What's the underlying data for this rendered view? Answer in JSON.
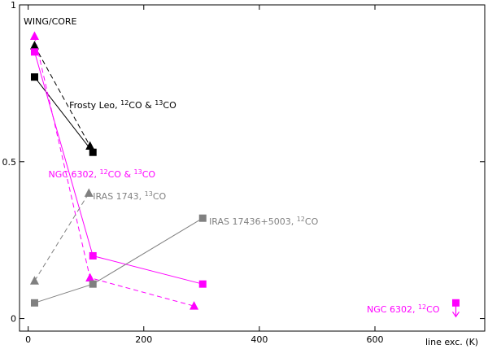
{
  "chart_data": {
    "type": "scatter",
    "title": "",
    "corner_label": "WING/CORE",
    "xlabel": "line exc. (K)",
    "ylabel": "",
    "xlim": [
      -15,
      790
    ],
    "ylim": [
      -0.04,
      1.0
    ],
    "x_ticks": [
      {
        "value": 0,
        "label": "0"
      },
      {
        "value": 200,
        "label": "200"
      },
      {
        "value": 400,
        "label": "400"
      },
      {
        "value": 600,
        "label": "600"
      }
    ],
    "y_ticks": [
      {
        "value": 0,
        "label": "0"
      },
      {
        "value": 0.5,
        "label": "0.5"
      },
      {
        "value": 1,
        "label": "1"
      }
    ],
    "grid": false,
    "series": [
      {
        "key": "frosty_12co",
        "color": "#000000",
        "marker": "square",
        "line": "solid",
        "x": [
          11,
          112
        ],
        "y": [
          0.77,
          0.53
        ]
      },
      {
        "key": "frosty_13co",
        "color": "#000000",
        "marker": "triangle",
        "line": "dashed",
        "x": [
          11,
          107
        ],
        "y": [
          0.87,
          0.55
        ]
      },
      {
        "key": "ngc6302_12co",
        "color": "#ff00ff",
        "marker": "square",
        "line": "solid",
        "x": [
          11,
          112,
          302
        ],
        "y": [
          0.85,
          0.2,
          0.11
        ]
      },
      {
        "key": "ngc6302_13co",
        "color": "#ff00ff",
        "marker": "triangle",
        "line": "dashed",
        "x": [
          11,
          107,
          287
        ],
        "y": [
          0.9,
          0.13,
          0.04
        ]
      },
      {
        "key": "iras1743_13co",
        "color": "#808080",
        "marker": "triangle",
        "line": "dashed",
        "x": [
          11,
          105
        ],
        "y": [
          0.12,
          0.4
        ]
      },
      {
        "key": "iras17436_12co",
        "color": "#808080",
        "marker": "square",
        "line": "solid",
        "x": [
          11,
          112,
          302
        ],
        "y": [
          0.05,
          0.11,
          0.32
        ]
      },
      {
        "key": "ngc6302_12co_limit",
        "color": "#ff00ff",
        "marker": "square",
        "line": "none",
        "upper_limit": true,
        "x": [
          740
        ],
        "y": [
          0.05
        ]
      }
    ],
    "annotations": [
      {
        "key": "frosty",
        "text": "Frosty Leo, ",
        "iso1": "12",
        "mol1": "CO & ",
        "iso2": "13",
        "mol2": "CO",
        "color": "#000000",
        "x": 71,
        "y": 0.67
      },
      {
        "key": "ngc_both",
        "text": "NGC 6302, ",
        "iso1": "12",
        "mol1": "CO & ",
        "iso2": "13",
        "mol2": "CO",
        "color": "#ff00ff",
        "x": 35,
        "y": 0.45
      },
      {
        "key": "iras1743",
        "text": "IRAS 1743, ",
        "iso1": "13",
        "mol1": "CO",
        "iso2": "",
        "mol2": "",
        "color": "#808080",
        "x": 112,
        "y": 0.38
      },
      {
        "key": "iras17436",
        "text": "IRAS 17436+5003, ",
        "iso1": "12",
        "mol1": "CO",
        "iso2": "",
        "mol2": "",
        "color": "#808080",
        "x": 313,
        "y": 0.3
      },
      {
        "key": "ngc_limit",
        "text": "NGC 6302, ",
        "iso1": "12",
        "mol1": "CO",
        "iso2": "",
        "mol2": "",
        "color": "#ff00ff",
        "x": 586,
        "y": 0.02
      }
    ]
  }
}
